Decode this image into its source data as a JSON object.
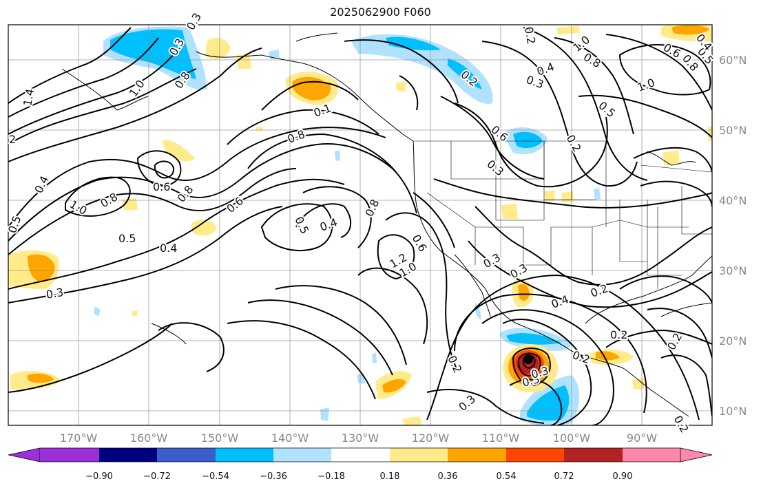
{
  "title": "2025062900 F060",
  "map": {
    "projection": "cylindrical",
    "lon_range_deg": [
      -180,
      -80
    ],
    "lat_range_deg": [
      8,
      65
    ],
    "gridlines": true,
    "coastlines": true,
    "state_borders": true
  },
  "lon_ticks": [
    "170°W",
    "160°W",
    "150°W",
    "140°W",
    "130°W",
    "120°W",
    "110°W",
    "100°W",
    "90°W"
  ],
  "lat_ticks": [
    "60°N",
    "50°N",
    "40°N",
    "30°N",
    "20°N",
    "10°N"
  ],
  "colorbar": {
    "extend": "both",
    "ticks": [
      "−0.90",
      "−0.72",
      "−0.54",
      "−0.36",
      "−0.18",
      "0.18",
      "0.36",
      "0.54",
      "0.72",
      "0.90"
    ],
    "colors": [
      "#9b30d8",
      "#000080",
      "#3a5fcd",
      "#00bfff",
      "#b0e2ff",
      "#ffffff",
      "#ffeb8a",
      "#ffa500",
      "#ff4500",
      "#b22222",
      "#ff88aa"
    ]
  },
  "contour_labels": [
    "0.3",
    "0.3",
    "1.0",
    "0.8",
    "1.4",
    "2",
    "0.5",
    "0.4",
    "1.0",
    "0.8",
    "0.6",
    "0.8",
    "0.6",
    "0.5",
    "0.4",
    "0.3",
    "0.5",
    "0.4",
    "0.8",
    "0.8",
    "0.1",
    "0.6",
    "1.2",
    "1.0",
    "0.2",
    "0.3",
    "0.3",
    "0.3",
    "0.4",
    "0.2",
    "0.2",
    "0.2",
    "0.2",
    "0.3",
    "0.3",
    "0.2",
    "0.6",
    "0.3",
    "0.2",
    "0.5",
    "0.8",
    "1.0",
    "0.4",
    "0.3",
    "1.0",
    "0.6",
    "0.8",
    "0.5",
    "0.2",
    "0.2",
    "0.4"
  ]
}
